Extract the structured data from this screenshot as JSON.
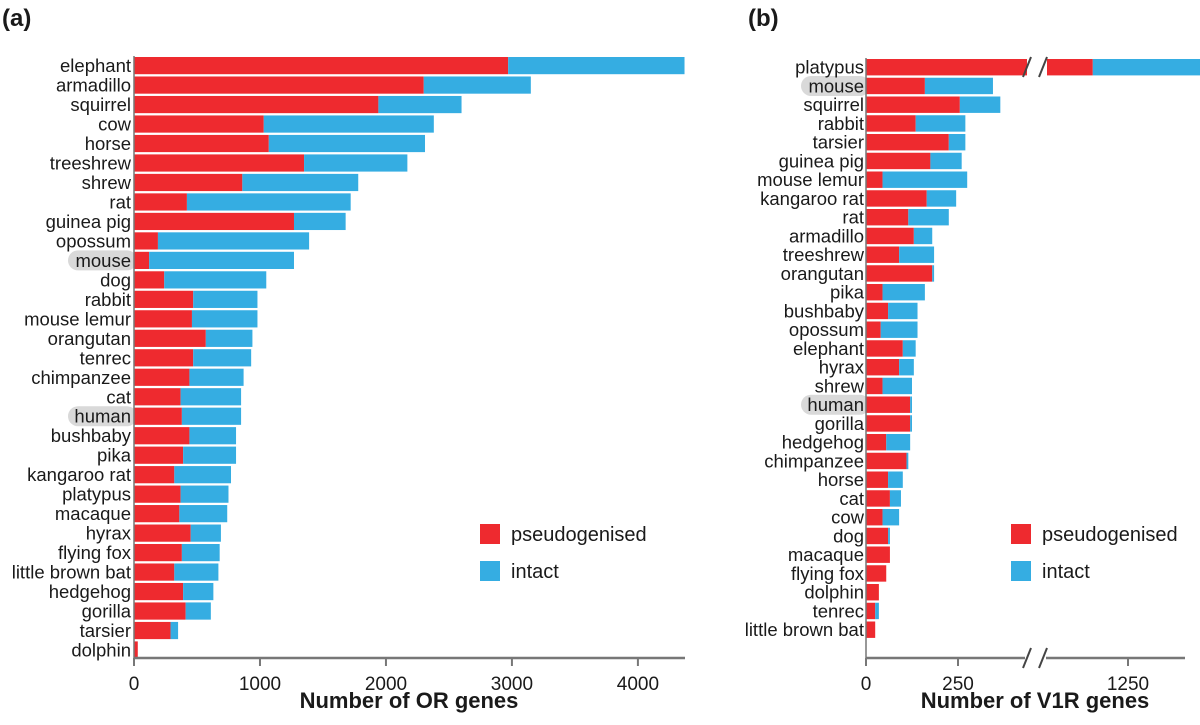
{
  "colors": {
    "pseudogenised": "#ee2a2f",
    "intact": "#35ade2",
    "axis": "#777777",
    "highlight": "#d9d9d9"
  },
  "chart_data": [
    {
      "panel_label": "(a)",
      "type": "bar",
      "orientation": "horizontal",
      "stacked": true,
      "xlabel": "Number of OR genes",
      "xlim": [
        0,
        4400
      ],
      "xticks": [
        0,
        1000,
        2000,
        3000,
        4000
      ],
      "grid": false,
      "legend_position": "bottom-right",
      "highlighted": [
        "mouse",
        "human"
      ],
      "categories": [
        "elephant",
        "armadillo",
        "squirrel",
        "cow",
        "horse",
        "treeshrew",
        "shrew",
        "rat",
        "guinea pig",
        "opossum",
        "mouse",
        "dog",
        "rabbit",
        "mouse lemur",
        "orangutan",
        "tenrec",
        "chimpanzee",
        "cat",
        "human",
        "bushbaby",
        "pika",
        "kangaroo rat",
        "platypus",
        "macaque",
        "hyrax",
        "flying fox",
        "little brown bat",
        "hedgehog",
        "gorilla",
        "tarsier",
        "dolphin"
      ],
      "series": [
        {
          "name": "pseudogenised",
          "values": [
            2970,
            2300,
            1940,
            1030,
            1070,
            1350,
            860,
            420,
            1270,
            190,
            120,
            240,
            470,
            460,
            570,
            470,
            440,
            370,
            380,
            440,
            390,
            320,
            370,
            360,
            450,
            380,
            320,
            390,
            410,
            290,
            30
          ]
        },
        {
          "name": "intact",
          "values": [
            1400,
            850,
            660,
            1350,
            1240,
            820,
            920,
            1300,
            410,
            1200,
            1150,
            810,
            510,
            520,
            370,
            460,
            430,
            480,
            470,
            370,
            420,
            450,
            380,
            380,
            240,
            300,
            350,
            240,
            200,
            60,
            0
          ]
        }
      ]
    },
    {
      "panel_label": "(b)",
      "type": "bar",
      "orientation": "horizontal",
      "stacked": true,
      "xlabel": "Number of V1R genes",
      "xlim": [
        0,
        1400
      ],
      "axis_break": [
        380,
        1050
      ],
      "xticks": [
        0,
        250,
        1250
      ],
      "grid": false,
      "legend_position": "bottom-right",
      "highlighted": [
        "mouse",
        "human"
      ],
      "categories": [
        "platypus",
        "mouse",
        "squirrel",
        "rabbit",
        "tarsier",
        "guinea pig",
        "mouse lemur",
        "kangaroo rat",
        "rat",
        "armadillo",
        "treeshrew",
        "orangutan",
        "pika",
        "bushbaby",
        "opossum",
        "elephant",
        "hyrax",
        "shrew",
        "human",
        "gorilla",
        "hedgehog",
        "chimpanzee",
        "horse",
        "cat",
        "cow",
        "dog",
        "macaque",
        "flying fox",
        "dolphin",
        "tenrec",
        "little brown bat"
      ],
      "series": [
        {
          "name": "pseudogenised",
          "values": [
            1170,
            160,
            255,
            135,
            225,
            175,
            45,
            165,
            115,
            130,
            90,
            180,
            45,
            60,
            40,
            100,
            90,
            45,
            120,
            120,
            55,
            110,
            60,
            65,
            45,
            60,
            65,
            55,
            35,
            25,
            25
          ]
        },
        {
          "name": "intact",
          "values": [
            250,
            185,
            110,
            135,
            45,
            85,
            230,
            80,
            110,
            50,
            95,
            5,
            115,
            80,
            100,
            35,
            40,
            80,
            5,
            5,
            65,
            5,
            40,
            30,
            45,
            5,
            0,
            0,
            0,
            10,
            0
          ]
        }
      ]
    }
  ],
  "legend": {
    "pseudogenised": "pseudogenised",
    "intact": "intact"
  }
}
